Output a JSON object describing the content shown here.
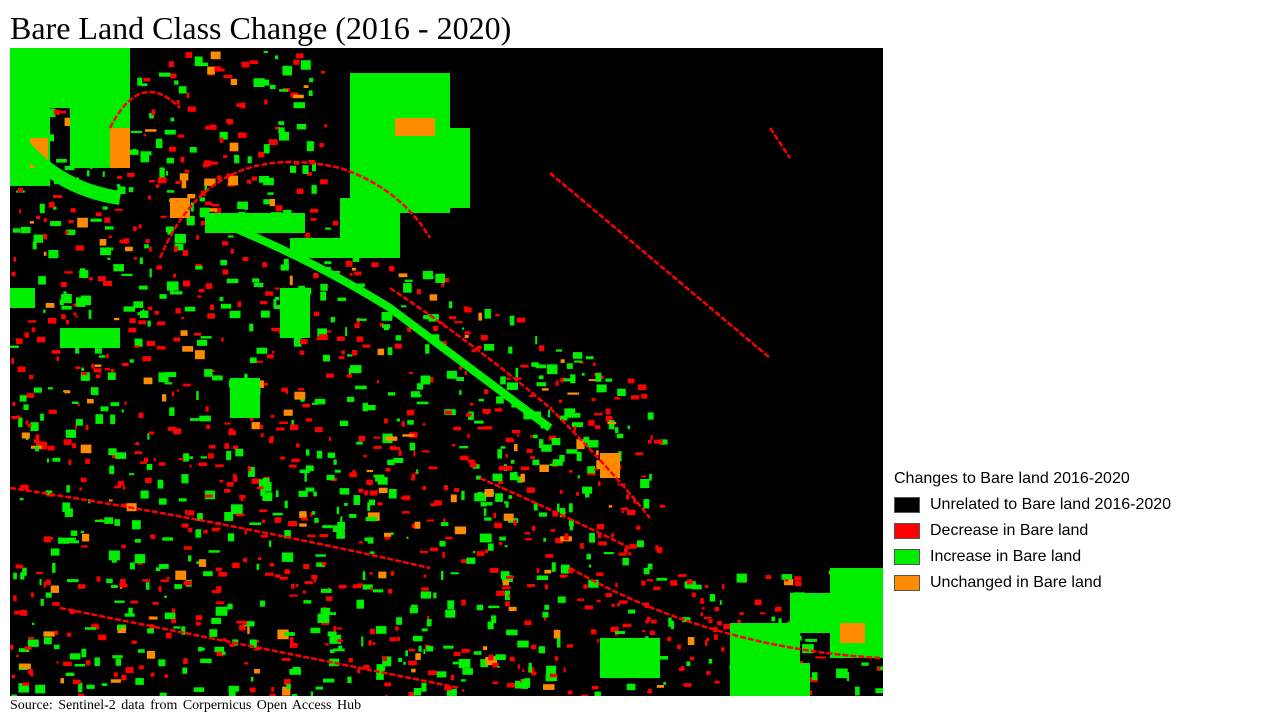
{
  "title": "Bare Land Class Change (2016 - 2020)",
  "source": "Source:  Sentinel-2  data from  Corpernicus  Open Access Hub",
  "colors": {
    "unrelated": "#000000",
    "decrease": "#ff0000",
    "increase": "#00ee00",
    "unchanged": "#ff8c00"
  },
  "legend": {
    "title": "Changes to Bare land 2016-2020",
    "items": [
      {
        "label": "Unrelated to Bare land 2016-2020",
        "color": "#000000"
      },
      {
        "label": "Decrease in Bare land",
        "color": "#ff0000"
      },
      {
        "label": "Increase in Bare land",
        "color": "#00ee00"
      },
      {
        "label": "Unchanged in Bare land",
        "color": "#ff8c00"
      }
    ]
  }
}
